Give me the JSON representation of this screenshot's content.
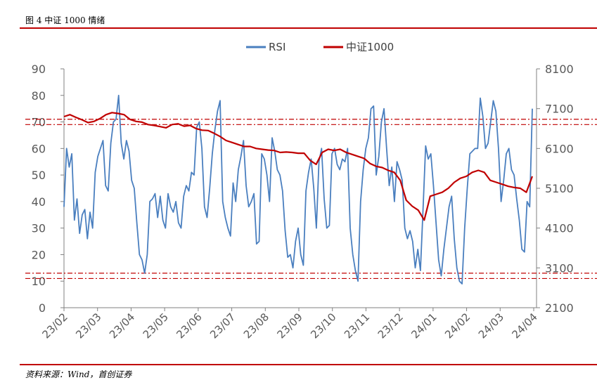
{
  "figure": {
    "title": "图 4 中证 1000 情绪",
    "source": "资料来源：Wind，首创证券"
  },
  "chart_data": {
    "type": "line",
    "title": "",
    "legend_position": "top-center",
    "x_tick_labels": [
      "23/02",
      "23/03",
      "23/04",
      "23/05",
      "23/06",
      "23/07",
      "23/08",
      "23/09",
      "23/10",
      "23/11",
      "23/12",
      "24/01",
      "24/02",
      "24/03",
      "24/04"
    ],
    "y_left": {
      "ticks": [
        0,
        10,
        20,
        30,
        40,
        50,
        60,
        70,
        80,
        90
      ],
      "range": [
        0,
        90
      ]
    },
    "y_right": {
      "ticks": [
        2100,
        3100,
        4100,
        5100,
        6100,
        7100,
        8100
      ],
      "range": [
        2100,
        8100
      ]
    },
    "reference_lines": [
      {
        "axis": "left",
        "value": 71,
        "style": "dash-dot",
        "color": "#c00000"
      },
      {
        "axis": "left",
        "value": 69,
        "style": "dash-dot",
        "color": "#c00000"
      },
      {
        "axis": "left",
        "value": 13,
        "style": "dash-dot",
        "color": "#c00000"
      },
      {
        "axis": "left",
        "value": 11,
        "style": "dash-dot",
        "color": "#c00000"
      }
    ],
    "series": [
      {
        "name": "RSI",
        "axis": "left",
        "color": "#4a7fbf",
        "values": [
          38,
          60,
          53,
          58,
          33,
          41,
          28,
          35,
          37,
          26,
          36,
          30,
          51,
          57,
          60,
          63,
          46,
          44,
          62,
          70,
          71,
          80,
          62,
          56,
          63,
          59,
          48,
          45,
          32,
          20,
          18,
          13,
          20,
          40,
          41,
          43,
          34,
          42,
          33,
          30,
          43,
          38,
          36,
          40,
          32,
          30,
          42,
          46,
          44,
          51,
          50,
          68,
          70,
          60,
          38,
          34,
          45,
          58,
          67,
          74,
          78,
          40,
          34,
          30,
          27,
          47,
          40,
          52,
          57,
          63,
          46,
          38,
          40,
          43,
          24,
          25,
          58,
          56,
          50,
          40,
          64,
          59,
          52,
          50,
          44,
          29,
          19,
          20,
          15,
          25,
          30,
          20,
          16,
          44,
          51,
          56,
          45,
          30,
          55,
          60,
          41,
          30,
          31,
          58,
          60,
          54,
          52,
          56,
          55,
          60,
          30,
          20,
          14,
          10,
          40,
          52,
          60,
          64,
          75,
          76,
          50,
          57,
          70,
          75,
          60,
          46,
          53,
          40,
          55,
          52,
          48,
          30,
          26,
          29,
          25,
          15,
          22,
          14,
          37,
          61,
          56,
          58,
          46,
          32,
          18,
          12,
          22,
          30,
          38,
          42,
          26,
          15,
          10,
          9,
          30,
          45,
          58,
          59,
          60,
          60,
          79,
          72,
          60,
          62,
          70,
          78,
          74,
          60,
          40,
          48,
          58,
          60,
          52,
          50,
          41,
          33,
          22,
          21,
          40,
          38,
          75
        ]
      },
      {
        "name": "中证1000",
        "axis": "right",
        "color": "#c00000",
        "values": [
          6900,
          6950,
          6880,
          6820,
          6750,
          6780,
          6850,
          6950,
          7000,
          6980,
          6950,
          6830,
          6780,
          6760,
          6700,
          6680,
          6650,
          6620,
          6700,
          6720,
          6660,
          6680,
          6600,
          6560,
          6550,
          6480,
          6400,
          6300,
          6250,
          6200,
          6150,
          6150,
          6100,
          6080,
          6060,
          6050,
          6000,
          6010,
          6000,
          5980,
          5980,
          5800,
          5700,
          6000,
          6080,
          6050,
          6080,
          6000,
          5950,
          5900,
          5850,
          5720,
          5650,
          5620,
          5550,
          5500,
          5300,
          4800,
          4650,
          4550,
          4300,
          4900,
          4950,
          5000,
          5100,
          5250,
          5350,
          5400,
          5500,
          5550,
          5500,
          5300,
          5250,
          5200,
          5150,
          5120,
          5100,
          5000,
          5400
        ]
      }
    ]
  }
}
